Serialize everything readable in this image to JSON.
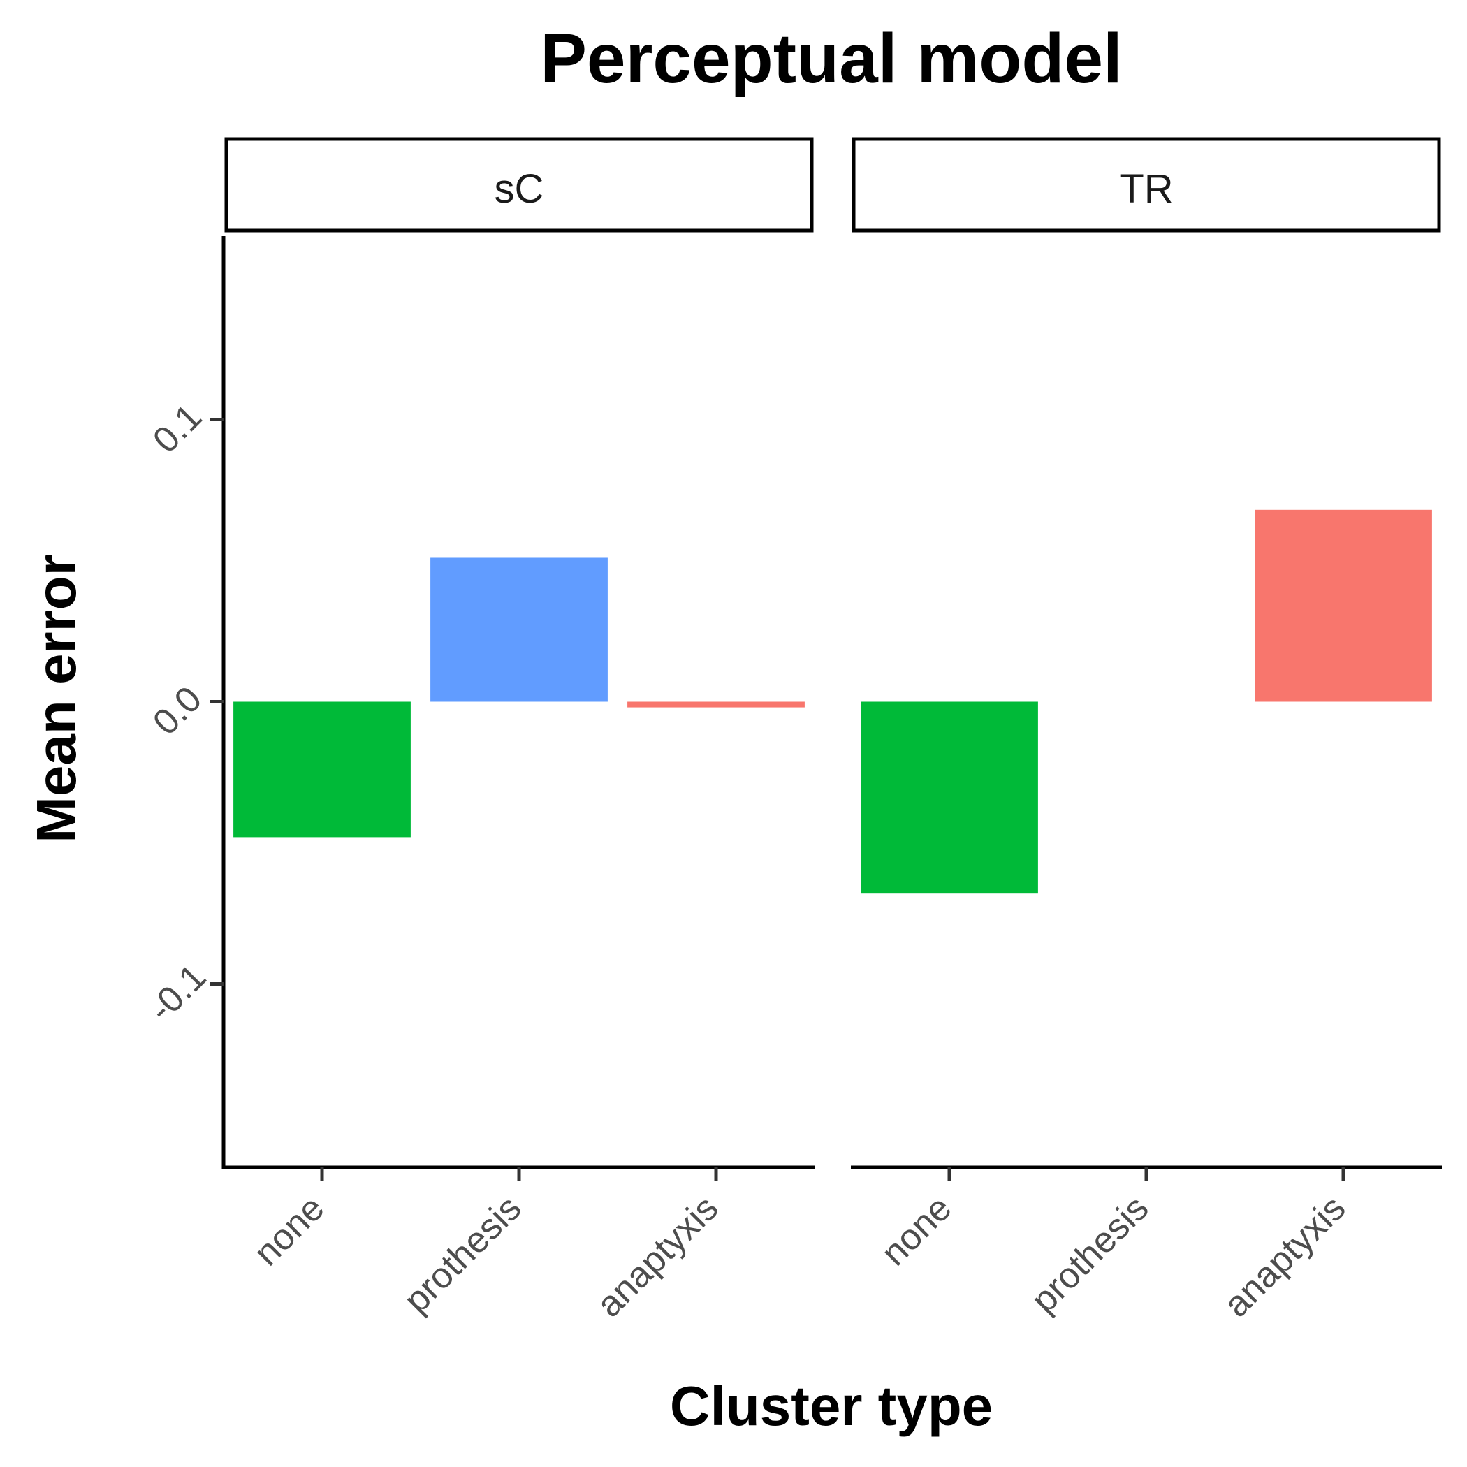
{
  "chart_data": {
    "type": "bar",
    "title": "Perceptual model",
    "xlabel": "Cluster type",
    "ylabel": "Mean error",
    "ylim": [
      -0.165,
      0.165
    ],
    "yticks": [
      -0.1,
      0.0,
      0.1
    ],
    "ytick_labels": [
      "-0.1",
      "0.0",
      "0.1"
    ],
    "categories": [
      "none",
      "prothesis",
      "anaptyxis"
    ],
    "category_colors": {
      "none": "#00BA38",
      "prothesis": "#619CFF",
      "anaptyxis": "#F8766D"
    },
    "legend": "none",
    "grid": false,
    "facets": [
      {
        "label": "sC",
        "values": [
          -0.048,
          0.051,
          -0.002
        ]
      },
      {
        "label": "TR",
        "values": [
          -0.068,
          null,
          0.068
        ]
      }
    ]
  }
}
